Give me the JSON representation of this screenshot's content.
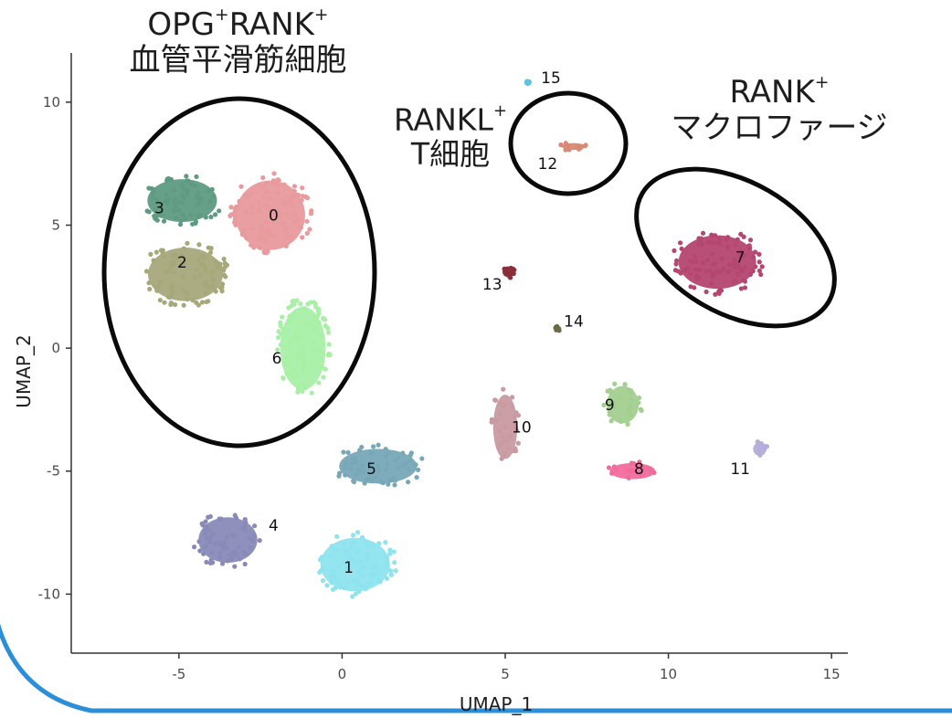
{
  "theme": {
    "frame_color": "#2a8fd8",
    "axis_color": "#333333",
    "text_color": "#1e1e1e"
  },
  "chart_data": {
    "type": "scatter",
    "title": "",
    "xlabel": "UMAP_1",
    "ylabel": "UMAP_2",
    "xlim": [
      -8.3,
      15.5
    ],
    "ylim": [
      -12.4,
      12.0
    ],
    "xticks": [
      -5,
      0,
      5,
      10,
      15
    ],
    "yticks": [
      -10,
      -5,
      0,
      5,
      10
    ],
    "xtick_labels": [
      "-5",
      "0",
      "5",
      "10",
      "15"
    ],
    "ytick_labels": [
      "-10",
      "-5",
      "0",
      "5",
      "10"
    ],
    "grid": false,
    "legend": "none",
    "clusters": [
      {
        "label": "0",
        "color": "#e89a9c",
        "center": [
          -2.2,
          5.4
        ],
        "spread": [
          2.6,
          2.6
        ],
        "label_pos": [
          -2.1,
          5.4
        ]
      },
      {
        "label": "1",
        "color": "#8ee4ee",
        "center": [
          0.4,
          -8.8
        ],
        "spread": [
          2.6,
          2.0
        ],
        "label_pos": [
          0.2,
          -8.9
        ]
      },
      {
        "label": "2",
        "color": "#a7a87a",
        "center": [
          -4.8,
          3.0
        ],
        "spread": [
          2.8,
          2.0
        ],
        "label_pos": [
          -4.9,
          3.5
        ]
      },
      {
        "label": "3",
        "color": "#5f9b82",
        "center": [
          -4.9,
          6.0
        ],
        "spread": [
          2.6,
          1.6
        ],
        "label_pos": [
          -5.6,
          5.7
        ]
      },
      {
        "label": "4",
        "color": "#8a8ab8",
        "center": [
          -3.5,
          -7.8
        ],
        "spread": [
          2.2,
          1.7
        ],
        "label_pos": [
          -2.1,
          -7.2
        ]
      },
      {
        "label": "5",
        "color": "#78a8b8",
        "center": [
          1.1,
          -4.8
        ],
        "spread": [
          2.9,
          1.3
        ],
        "label_pos": [
          0.9,
          -4.9
        ]
      },
      {
        "label": "6",
        "color": "#a8f0a6",
        "center": [
          -1.2,
          0.0
        ],
        "spread": [
          1.7,
          3.1
        ],
        "label_pos": [
          -2.0,
          -0.4
        ]
      },
      {
        "label": "7",
        "color": "#b4466f",
        "center": [
          11.5,
          3.5
        ],
        "spread": [
          2.9,
          2.0
        ],
        "label_pos": [
          12.2,
          3.7
        ]
      },
      {
        "label": "8",
        "color": "#f26b9c",
        "center": [
          8.9,
          -5.0
        ],
        "spread": [
          1.7,
          0.6
        ],
        "label_pos": [
          9.1,
          -4.9
        ]
      },
      {
        "label": "9",
        "color": "#a3cf90",
        "center": [
          8.6,
          -2.3
        ],
        "spread": [
          1.2,
          1.4
        ],
        "label_pos": [
          8.2,
          -2.3
        ]
      },
      {
        "label": "10",
        "color": "#c99aa2",
        "center": [
          5.0,
          -3.2
        ],
        "spread": [
          0.9,
          2.4
        ],
        "label_pos": [
          5.5,
          -3.2
        ]
      },
      {
        "label": "11",
        "color": "#b5addb",
        "center": [
          12.8,
          -4.1
        ],
        "spread": [
          0.5,
          0.5
        ],
        "label_pos": [
          12.2,
          -4.9
        ]
      },
      {
        "label": "12",
        "color": "#d98873",
        "center": [
          7.1,
          8.2
        ],
        "spread": [
          0.9,
          0.25
        ],
        "label_pos": [
          6.3,
          7.5
        ]
      },
      {
        "label": "13",
        "color": "#8a2e3a",
        "center": [
          5.1,
          3.1
        ],
        "spread": [
          0.45,
          0.4
        ],
        "label_pos": [
          4.6,
          2.6
        ]
      },
      {
        "label": "14",
        "color": "#6e6a48",
        "center": [
          6.6,
          0.8
        ],
        "spread": [
          0.15,
          0.2
        ],
        "label_pos": [
          7.1,
          1.1
        ]
      },
      {
        "label": "15",
        "color": "#5cc3e2",
        "center": [
          5.7,
          10.8
        ],
        "spread": [
          0.1,
          0.1
        ],
        "label_pos": [
          6.4,
          11.0
        ]
      }
    ],
    "annotations": [
      {
        "id": "osteoblast-group",
        "lines": [
          "OPG",
          "RANK",
          "血管平滑筋細胞"
        ],
        "circled_clusters": [
          "0",
          "2",
          "3",
          "6"
        ]
      },
      {
        "id": "tcell-group",
        "lines": [
          "RANKL",
          "T細胞"
        ],
        "circled_clusters": [
          "12"
        ]
      },
      {
        "id": "macrophage-group",
        "lines": [
          "RANK",
          "マクロファージ"
        ],
        "circled_clusters": [
          "7"
        ]
      }
    ]
  },
  "annotations_text": {
    "opg_rank": {
      "l1a": "OPG",
      "sup1": "+",
      "l1b": "RANK",
      "sup2": "+",
      "l2": "血管平滑筋細胞"
    },
    "rankl_t": {
      "l1": "RANKL",
      "sup": "+",
      "l2": "T細胞"
    },
    "rank_mac": {
      "l1": "RANK",
      "sup": "+",
      "l2": "マクロファージ"
    }
  }
}
